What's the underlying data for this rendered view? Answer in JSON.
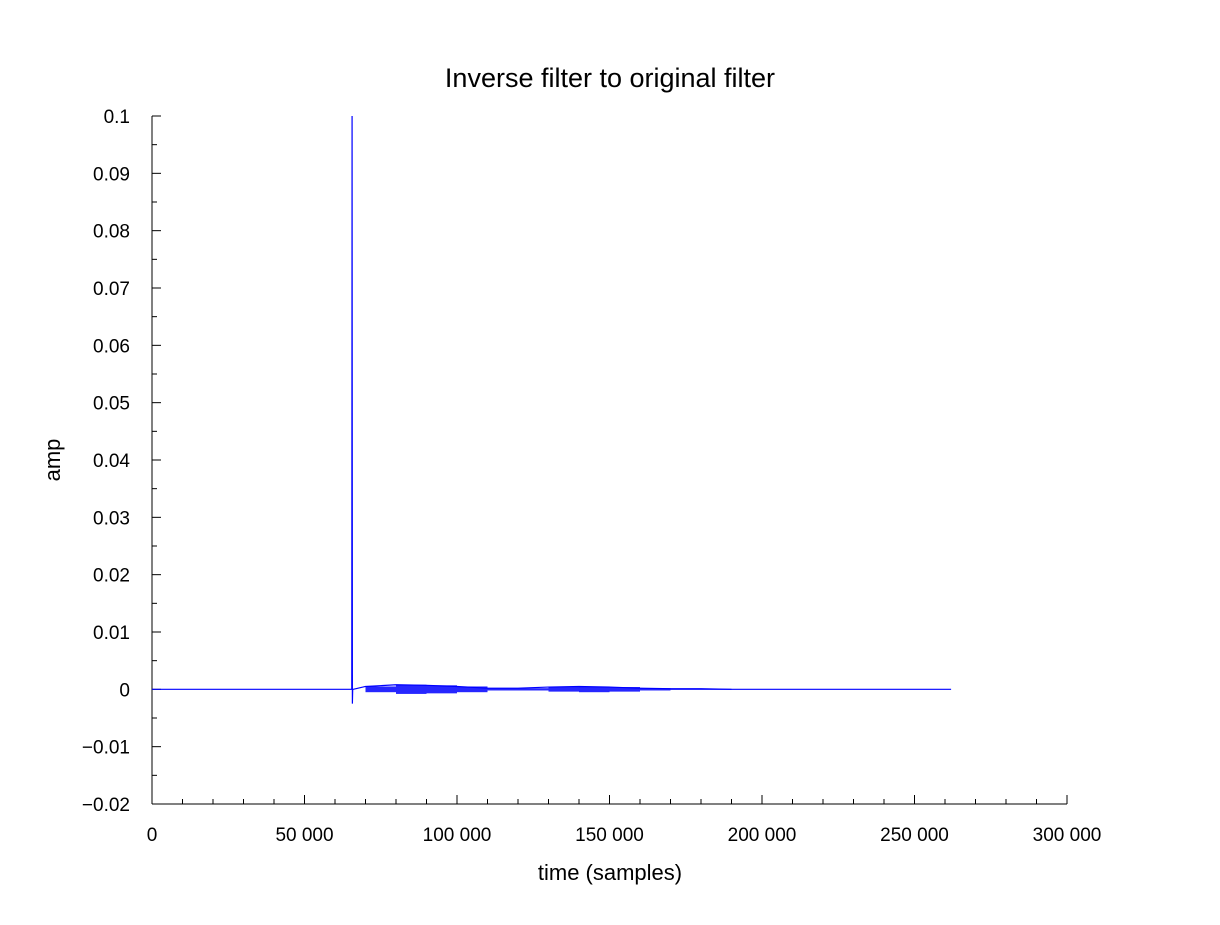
{
  "chart_data": {
    "type": "line",
    "title": "Inverse filter to original filter",
    "xlabel": "time (samples)",
    "ylabel": "amp",
    "xlim": [
      0,
      300000
    ],
    "ylim": [
      -0.02,
      0.1
    ],
    "grid": false,
    "x_ticks": [
      0,
      50000,
      100000,
      150000,
      200000,
      250000,
      300000
    ],
    "x_tick_labels": [
      "0",
      "50 000",
      "100 000",
      "150 000",
      "200 000",
      "250 000",
      "300 000"
    ],
    "y_ticks": [
      -0.02,
      -0.01,
      0,
      0.01,
      0.02,
      0.03,
      0.04,
      0.05,
      0.06,
      0.07,
      0.08,
      0.09,
      0.1
    ],
    "y_tick_labels": [
      "−0.02",
      "−0.01",
      "0",
      "0.01",
      "0.02",
      "0.03",
      "0.04",
      "0.05",
      "0.06",
      "0.07",
      "0.08",
      "0.09",
      "0.1"
    ],
    "series": [
      {
        "color": "#0000ff",
        "x": [
          0,
          10000,
          20000,
          30000,
          40000,
          50000,
          60000,
          65000,
          65500,
          65600,
          65700,
          65800,
          66000,
          70000,
          80000,
          90000,
          100000,
          110000,
          120000,
          130000,
          140000,
          150000,
          160000,
          170000,
          180000,
          190000,
          200000,
          210000,
          220000,
          230000,
          240000,
          250000,
          262000
        ],
        "y": [
          0,
          0,
          0,
          0,
          0,
          0,
          0,
          0,
          0,
          0.1,
          -0.0025,
          0,
          0,
          0.0005,
          0.0008,
          0.0007,
          0.0005,
          0.0002,
          0.0002,
          0.0004,
          0.0005,
          0.0004,
          0.0002,
          0.0001,
          0.0001,
          0,
          0,
          0,
          0,
          0,
          0,
          0,
          0
        ]
      }
    ]
  }
}
